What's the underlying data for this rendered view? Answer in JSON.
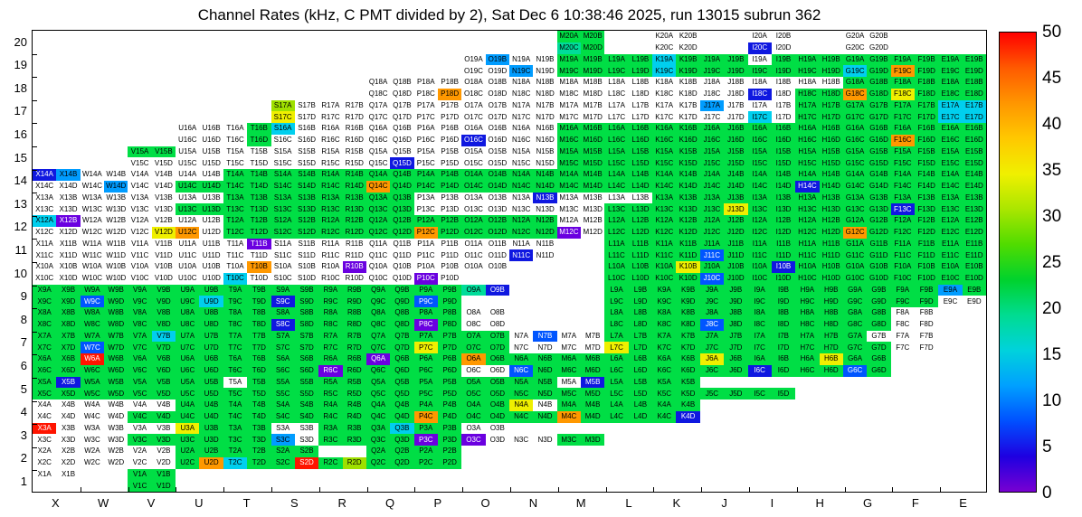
{
  "chart_data": {
    "type": "heatmap",
    "title": "Channel Rates (kHz, C PMT divided by 2), Sat Dec 6 10:38:46 2025, run 13015 subrun 362",
    "xlabel": "",
    "ylabel": "",
    "col_labels": [
      "X",
      "W",
      "V",
      "U",
      "T",
      "S",
      "R",
      "Q",
      "P",
      "O",
      "N",
      "M",
      "L",
      "K",
      "J",
      "I",
      "H",
      "G",
      "F",
      "E"
    ],
    "row_labels": [
      20,
      19,
      18,
      17,
      16,
      15,
      14,
      13,
      12,
      11,
      10,
      9,
      8,
      7,
      6,
      5,
      4,
      3,
      2,
      1
    ],
    "variants": [
      "A",
      "B",
      "C",
      "D"
    ],
    "cell_label_format": "column letter + row number + variant, e.g. X14A",
    "colorbar": {
      "unit": "kHz",
      "min": 0,
      "max": 50,
      "ticks": [
        50,
        45,
        40,
        35,
        30,
        25,
        20,
        15,
        10,
        5,
        0
      ],
      "gradient_top_to_bottom": [
        "#ff0000",
        "#ff5a00",
        "#ff9600",
        "#ffc800",
        "#f0f000",
        "#aae600",
        "#50dc00",
        "#00d22d",
        "#00dc91",
        "#00d2dc",
        "#00a0ff",
        "#0050ff",
        "#1e00e1",
        "#7800d2"
      ]
    },
    "palette": {
      "w": {
        "bg": "#ffffff",
        "text": "#000000",
        "value": 0
      },
      "g": {
        "bg": "#00de45",
        "text": "#000000",
        "value": 23
      },
      "t": {
        "bg": "#00dc9a",
        "text": "#000000",
        "value": 18
      },
      "c": {
        "bg": "#00cfee",
        "text": "#000000",
        "value": 14
      },
      "l": {
        "bg": "#009cff",
        "text": "#000000",
        "value": 11
      },
      "b": {
        "bg": "#0055ff",
        "text": "#ffffff",
        "value": 8
      },
      "B": {
        "bg": "#0f18e0",
        "text": "#ffffff",
        "value": 4
      },
      "v": {
        "bg": "#6a00e0",
        "text": "#ffffff",
        "value": 1
      },
      "Y": {
        "bg": "#9fe000",
        "text": "#000000",
        "value": 30
      },
      "y": {
        "bg": "#efef00",
        "text": "#000000",
        "value": 34
      },
      "o": {
        "bg": "#ff9800",
        "text": "#000000",
        "value": 41
      },
      "r": {
        "bg": "#ff1400",
        "text": "#ffffff",
        "value": 49
      }
    },
    "rows": [
      [
        "",
        "",
        "",
        "",
        "",
        "",
        "",
        "",
        "",
        "",
        "",
        "ggtg",
        "",
        "wwww",
        "",
        "wwBw",
        "",
        "wwww",
        "",
        ""
      ],
      [
        "",
        "",
        "",
        "",
        "",
        "",
        "",
        "",
        "",
        "wlww",
        "wwlw",
        "gggg",
        "gggg",
        "cgcg",
        "gggg",
        "wggg",
        "gggg",
        "ggcg",
        "ggog",
        "gggg"
      ],
      [
        "",
        "",
        "",
        "",
        "",
        "",
        "",
        "wwww",
        "wwwo",
        "wwww",
        "wwww",
        "wwww",
        "wwww",
        "wwww",
        "wwww",
        "wwBw",
        "wwgg",
        "ggog",
        "ggyg",
        "gggg"
      ],
      [
        "",
        "",
        "",
        "",
        "",
        "Ywyw",
        "wwww",
        "wwww",
        "wwww",
        "wwww",
        "wwww",
        "wwww",
        "wwww",
        "wwww",
        "lwww",
        "wwcw",
        "gggg",
        "gggg",
        "gggg",
        "cccc"
      ],
      [
        "",
        "",
        "",
        "wwww",
        "wgwg",
        "cwww",
        "wwww",
        "wwww",
        "wwww",
        "wwBw",
        "wwww",
        "gggg",
        "gggg",
        "gggg",
        "gggg",
        "gggg",
        "gggg",
        "gggg",
        "ggog",
        "gggg"
      ],
      [
        "",
        "",
        "ggww",
        "wwww",
        "wwww",
        "wwww",
        "wwww",
        "wwwB",
        "wwww",
        "wwww",
        "wwww",
        "gggg",
        "gggg",
        "gggg",
        "gggg",
        "gggg",
        "gggg",
        "gggg",
        "gggg",
        "gggg"
      ],
      [
        "Blww",
        "wwwl",
        "wwww",
        "wwgg",
        "gggg",
        "gggg",
        "gggg",
        "ggog",
        "gggg",
        "gggg",
        "gggg",
        "gggg",
        "gggg",
        "gggg",
        "gggg",
        "gggg",
        "ggBg",
        "gggg",
        "gggg",
        "gggg"
      ],
      [
        "wwww",
        "wwww",
        "wwww",
        "wwgg",
        "gggg",
        "gggg",
        "gggg",
        "gggg",
        "wwww",
        "wwww",
        "wBww",
        "wwww",
        "wwgg",
        "gggg",
        "gggy",
        "gggg",
        "gggg",
        "gggg",
        "ggBg",
        "gggg"
      ],
      [
        "cvww",
        "wwww",
        "wwwy",
        "wwow",
        "gggg",
        "gggg",
        "gggg",
        "gggg",
        "ggog",
        "gggg",
        "gggg",
        "wwvw",
        "gggg",
        "gggg",
        "gggg",
        "gggg",
        "gggg",
        "ggog",
        "gggg",
        "gggg"
      ],
      [
        "wwww",
        "wwww",
        "wwww",
        "wwww",
        "wvww",
        "wwww",
        "wwww",
        "wwww",
        "wwww",
        "wwww",
        "wwBw",
        "",
        "gggg",
        "gggg",
        "ggbg",
        "gggg",
        "gggg",
        "gggg",
        "gggg",
        "gggg"
      ],
      [
        "wwww",
        "wwww",
        "wwww",
        "wwww",
        "wocw",
        "wwww",
        "wvww",
        "wwww",
        "wwvw",
        "ww..",
        "",
        "",
        "gggg",
        "gygg",
        "ggbg",
        "gBgg",
        "gggg",
        "gggg",
        "gggg",
        "gggg"
      ],
      [
        "gggg",
        "ggbg",
        "gggg",
        "gggc",
        "gggg",
        "ggBg",
        "gggg",
        "gggg",
        "ggbg",
        "tB..",
        "",
        "",
        "gggg",
        "gggg",
        "gggg",
        "gggg",
        "gggg",
        "gggg",
        "gggg",
        "lgww"
      ],
      [
        "gggg",
        "gggg",
        "gggg",
        "gggg",
        "gggg",
        "ggBg",
        "gggg",
        "gggg",
        "ggvg",
        "wwww",
        "",
        "",
        "gggg",
        "gggg",
        "ggbg",
        "gggg",
        "gggg",
        "gggg",
        "wwww",
        ""
      ],
      [
        "gggg",
        "ggbg",
        "gcgg",
        "gggg",
        "gggg",
        "gggg",
        "gggg",
        "gggg",
        "ggyg",
        "gggg",
        "wbww",
        "wwww",
        "ggyg",
        "gggg",
        "gggg",
        "gggg",
        "gggg",
        "gwgg",
        "wwww",
        ""
      ],
      [
        "gggg",
        "rggg",
        "gggg",
        "gggg",
        "gggg",
        "gggg",
        "ggvg",
        "vggg",
        "gggg",
        "ogww",
        "ggbg",
        "gggg",
        "gggg",
        "gggg",
        "yggg",
        "ggBg",
        "gygg",
        "ggbg",
        "",
        ""
      ],
      [
        "gBgg",
        "gggg",
        "gggg",
        "gggg",
        "wggg",
        "gggg",
        "gggg",
        "gggg",
        "gggg",
        "gggg",
        "gggg",
        "wBgg",
        "gggg",
        "gggg",
        "..gg",
        "..gg",
        "",
        "",
        "",
        ""
      ],
      [
        "wwww",
        "wwww",
        "wwgg",
        "gggg",
        "gggg",
        "gggg",
        "gggg",
        "gggg",
        "ggog",
        "gggg",
        "ywgg",
        "ggog",
        "gggg",
        "gggB",
        "",
        "",
        "",
        "",
        "",
        ""
      ],
      [
        "rwww",
        "wwww",
        "wwgg",
        "yggg",
        "gggg",
        "wwlw",
        "gggg",
        "gcgg",
        "ggvg",
        "wwvw",
        "..ww",
        "..gg",
        "",
        "",
        "",
        "",
        "",
        "",
        "",
        ""
      ],
      [
        "wwww",
        "wwww",
        "wwww",
        "gggo",
        "ggcg",
        "gggr",
        "..gY",
        "gggg",
        "gggg",
        "",
        "",
        "",
        "",
        "",
        "",
        "",
        "",
        "",
        "",
        ""
      ],
      [
        "ww..",
        "",
        "gggg",
        "",
        "",
        "",
        "",
        "",
        "",
        "",
        "",
        "",
        "",
        "",
        "",
        "",
        "",
        "",
        "",
        ""
      ]
    ]
  }
}
